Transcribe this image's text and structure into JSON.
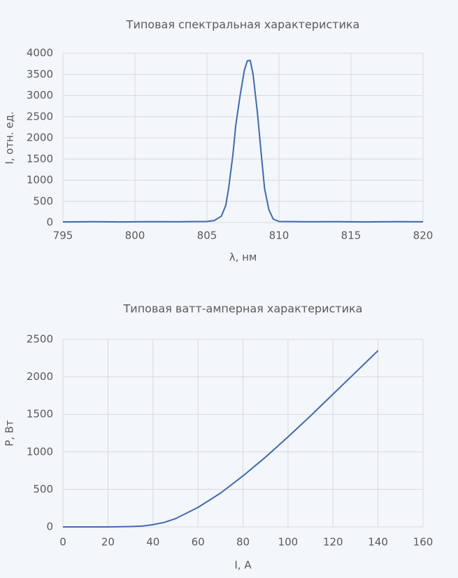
{
  "chart_data": [
    {
      "type": "line",
      "title": "Типовая спектральная характеристика",
      "x_label": "λ, нм",
      "y_label": "I, отн. ед.",
      "x": [
        795,
        797,
        799,
        801,
        803,
        804,
        805,
        805.5,
        806,
        806.3,
        806.5,
        806.8,
        807,
        807.3,
        807.6,
        807.8,
        808,
        808.2,
        808.5,
        808.8,
        809,
        809.3,
        809.6,
        810,
        812,
        814,
        816,
        818,
        820
      ],
      "values": [
        15,
        20,
        15,
        20,
        18,
        22,
        25,
        45,
        150,
        400,
        800,
        1600,
        2300,
        3000,
        3600,
        3820,
        3830,
        3500,
        2600,
        1500,
        800,
        300,
        80,
        25,
        18,
        20,
        15,
        20,
        18
      ],
      "color": "#4169b0",
      "xlim": [
        795,
        820
      ],
      "ylim": [
        0,
        4000
      ],
      "xticks": [
        795,
        800,
        805,
        810,
        815,
        820
      ],
      "yticks": [
        0,
        500,
        1000,
        1500,
        2000,
        2500,
        3000,
        3500,
        4000
      ],
      "grid": true
    },
    {
      "type": "line",
      "title": "Типовая ватт-амперная характеристика",
      "x_label": "I, А",
      "y_label": "P, Вт",
      "x": [
        0,
        10,
        20,
        30,
        35,
        40,
        45,
        50,
        60,
        70,
        80,
        90,
        100,
        110,
        120,
        130,
        140
      ],
      "values": [
        0,
        0,
        0,
        5,
        10,
        30,
        60,
        110,
        260,
        450,
        680,
        930,
        1200,
        1480,
        1770,
        2060,
        2350
      ],
      "color": "#4169b0",
      "xlim": [
        0,
        160
      ],
      "ylim": [
        0,
        2500
      ],
      "xticks": [
        0,
        20,
        40,
        60,
        80,
        100,
        120,
        140,
        160
      ],
      "yticks": [
        0,
        500,
        1000,
        1500,
        2000,
        2500
      ],
      "grid": true
    }
  ]
}
